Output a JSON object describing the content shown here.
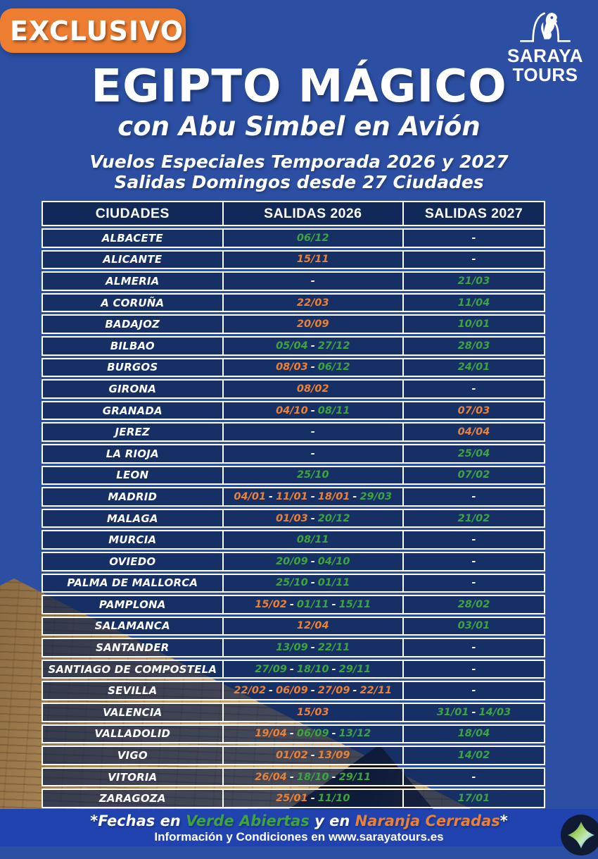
{
  "badge": {
    "label": "EXCLUSIVO"
  },
  "logo": {
    "icon": "horus-falcon-arch-icon",
    "line1": "SARAYA",
    "line2": "TOURS"
  },
  "header": {
    "title": "EGIPTO MÁGICO",
    "subtitle": "con Abu Simbel en Avión",
    "tagline1": "Vuelos Especiales Temporada 2026 y 2027",
    "tagline2": "Salidas Domingos desde 27 Ciudades"
  },
  "table": {
    "columns": [
      "CIUDADES",
      "SALIDAS 2026",
      "SALIDAS 2027"
    ],
    "empty_marker": "-",
    "rows": [
      {
        "city": "ALBACETE",
        "salidas_2026": [
          {
            "date": "06/12",
            "status": "open"
          }
        ],
        "salidas_2027": []
      },
      {
        "city": "ALICANTE",
        "salidas_2026": [
          {
            "date": "15/11",
            "status": "closed"
          }
        ],
        "salidas_2027": []
      },
      {
        "city": "ALMERIA",
        "salidas_2026": [],
        "salidas_2027": [
          {
            "date": "21/03",
            "status": "open"
          }
        ]
      },
      {
        "city": "A CORUÑA",
        "salidas_2026": [
          {
            "date": "22/03",
            "status": "closed"
          }
        ],
        "salidas_2027": [
          {
            "date": "11/04",
            "status": "open"
          }
        ]
      },
      {
        "city": "BADAJOZ",
        "salidas_2026": [
          {
            "date": "20/09",
            "status": "closed"
          }
        ],
        "salidas_2027": [
          {
            "date": "10/01",
            "status": "open"
          }
        ]
      },
      {
        "city": "BILBAO",
        "salidas_2026": [
          {
            "date": "05/04",
            "status": "open"
          },
          {
            "date": "27/12",
            "status": "open"
          }
        ],
        "salidas_2027": [
          {
            "date": "28/03",
            "status": "open"
          }
        ]
      },
      {
        "city": "BURGOS",
        "salidas_2026": [
          {
            "date": "08/03",
            "status": "closed"
          },
          {
            "date": "06/12",
            "status": "open"
          }
        ],
        "salidas_2027": [
          {
            "date": "24/01",
            "status": "open"
          }
        ]
      },
      {
        "city": "GIRONA",
        "salidas_2026": [
          {
            "date": "08/02",
            "status": "closed"
          }
        ],
        "salidas_2027": []
      },
      {
        "city": "GRANADA",
        "salidas_2026": [
          {
            "date": "04/10",
            "status": "closed"
          },
          {
            "date": "08/11",
            "status": "open"
          }
        ],
        "salidas_2027": [
          {
            "date": "07/03",
            "status": "closed"
          }
        ]
      },
      {
        "city": "JEREZ",
        "salidas_2026": [],
        "salidas_2027": [
          {
            "date": "04/04",
            "status": "closed"
          }
        ]
      },
      {
        "city": "LA RIOJA",
        "salidas_2026": [],
        "salidas_2027": [
          {
            "date": "25/04",
            "status": "open"
          }
        ]
      },
      {
        "city": "LEON",
        "salidas_2026": [
          {
            "date": "25/10",
            "status": "open"
          }
        ],
        "salidas_2027": [
          {
            "date": "07/02",
            "status": "open"
          }
        ]
      },
      {
        "city": "MADRID",
        "salidas_2026": [
          {
            "date": "04/01",
            "status": "closed"
          },
          {
            "date": "11/01",
            "status": "closed"
          },
          {
            "date": "18/01",
            "status": "closed"
          },
          {
            "date": "29/03",
            "status": "open"
          }
        ],
        "salidas_2027": []
      },
      {
        "city": "MALAGA",
        "salidas_2026": [
          {
            "date": "01/03",
            "status": "closed"
          },
          {
            "date": "20/12",
            "status": "open"
          }
        ],
        "salidas_2027": [
          {
            "date": "21/02",
            "status": "open"
          }
        ]
      },
      {
        "city": "MURCIA",
        "salidas_2026": [
          {
            "date": "08/11",
            "status": "open"
          }
        ],
        "salidas_2027": []
      },
      {
        "city": "OVIEDO",
        "salidas_2026": [
          {
            "date": "20/09",
            "status": "open"
          },
          {
            "date": "04/10",
            "status": "open"
          }
        ],
        "salidas_2027": []
      },
      {
        "city": "PALMA DE MALLORCA",
        "salidas_2026": [
          {
            "date": "25/10",
            "status": "open"
          },
          {
            "date": "01/11",
            "status": "open"
          }
        ],
        "salidas_2027": []
      },
      {
        "city": "PAMPLONA",
        "salidas_2026": [
          {
            "date": "15/02",
            "status": "closed"
          },
          {
            "date": "01/11",
            "status": "open"
          },
          {
            "date": "15/11",
            "status": "open"
          }
        ],
        "salidas_2027": [
          {
            "date": "28/02",
            "status": "open"
          }
        ]
      },
      {
        "city": "SALAMANCA",
        "salidas_2026": [
          {
            "date": "12/04",
            "status": "closed"
          }
        ],
        "salidas_2027": [
          {
            "date": "03/01",
            "status": "open"
          }
        ]
      },
      {
        "city": "SANTANDER",
        "salidas_2026": [
          {
            "date": "13/09",
            "status": "open"
          },
          {
            "date": "22/11",
            "status": "open"
          }
        ],
        "salidas_2027": []
      },
      {
        "city": "SANTIAGO DE COMPOSTELA",
        "salidas_2026": [
          {
            "date": "27/09",
            "status": "open"
          },
          {
            "date": "18/10",
            "status": "open"
          },
          {
            "date": "29/11",
            "status": "open"
          }
        ],
        "salidas_2027": []
      },
      {
        "city": "SEVILLA",
        "salidas_2026": [
          {
            "date": "22/02",
            "status": "closed"
          },
          {
            "date": "06/09",
            "status": "closed"
          },
          {
            "date": "27/09",
            "status": "closed"
          },
          {
            "date": "22/11",
            "status": "closed"
          }
        ],
        "salidas_2027": []
      },
      {
        "city": "VALENCIA",
        "salidas_2026": [
          {
            "date": "15/03",
            "status": "closed"
          }
        ],
        "salidas_2027": [
          {
            "date": "31/01",
            "status": "open"
          },
          {
            "date": "14/03",
            "status": "open"
          }
        ]
      },
      {
        "city": "VALLADOLID",
        "salidas_2026": [
          {
            "date": "19/04",
            "status": "closed"
          },
          {
            "date": "06/09",
            "status": "open"
          },
          {
            "date": "13/12",
            "status": "open"
          }
        ],
        "salidas_2027": [
          {
            "date": "18/04",
            "status": "open"
          }
        ]
      },
      {
        "city": "VIGO",
        "salidas_2026": [
          {
            "date": "01/02",
            "status": "closed"
          },
          {
            "date": "13/09",
            "status": "closed"
          }
        ],
        "salidas_2027": [
          {
            "date": "14/02",
            "status": "open"
          }
        ]
      },
      {
        "city": "VITORIA",
        "salidas_2026": [
          {
            "date": "26/04",
            "status": "closed"
          },
          {
            "date": "18/10",
            "status": "open"
          },
          {
            "date": "29/11",
            "status": "open"
          }
        ],
        "salidas_2027": []
      },
      {
        "city": "ZARAGOZA",
        "salidas_2026": [
          {
            "date": "25/01",
            "status": "closed"
          },
          {
            "date": "11/10",
            "status": "open"
          }
        ],
        "salidas_2027": [
          {
            "date": "17/01",
            "status": "open"
          }
        ]
      }
    ]
  },
  "legend": {
    "segments": [
      {
        "text": "*Fechas en ",
        "color": "white"
      },
      {
        "text": "Verde Abiertas",
        "color": "open"
      },
      {
        "text": " y en ",
        "color": "white"
      },
      {
        "text": "Naranja Cerradas",
        "color": "closed"
      },
      {
        "text": "*",
        "color": "white"
      }
    ]
  },
  "footer": {
    "info": "Información y Condiciones en www.sarayatours.es"
  },
  "colors": {
    "background": "#2C4FA3",
    "table_cell": "#1F3864",
    "badge_orange": "#ED7D31",
    "open_green": "#3FA341",
    "closed_orange": "#E8823A",
    "footer_bar": "#2143AF"
  }
}
